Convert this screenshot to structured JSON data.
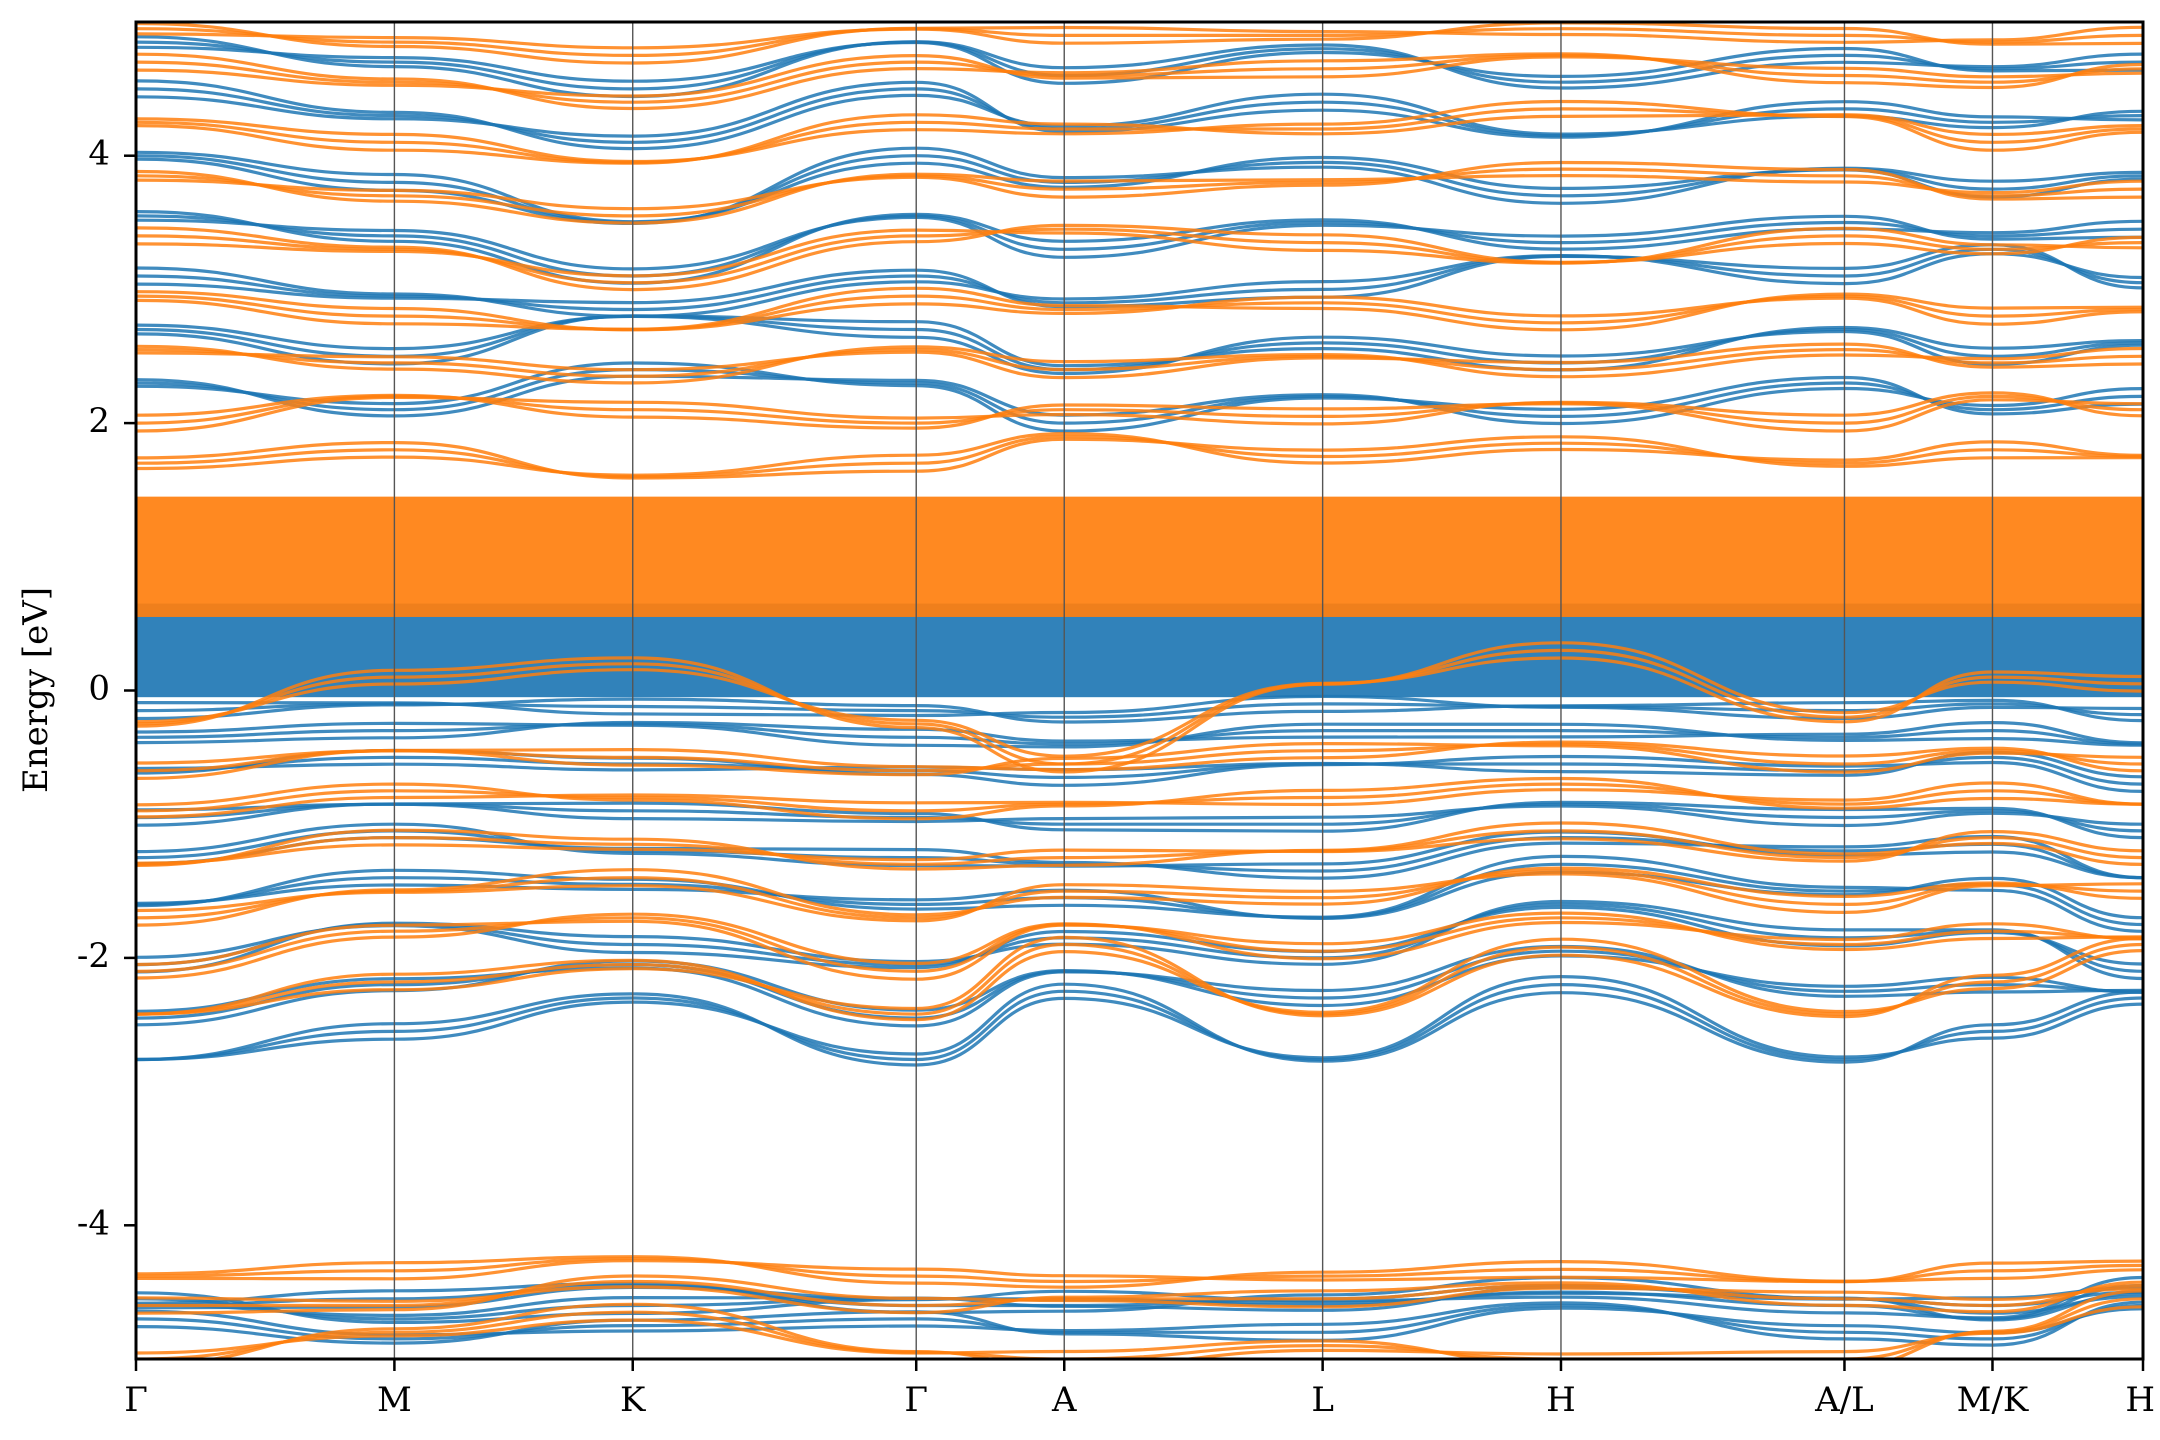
{
  "chart_data": {
    "type": "line",
    "title": "",
    "xlabel": "",
    "ylabel": "Energy [eV]",
    "ylim": [
      -5,
      5
    ],
    "y_ticks": [
      -4,
      -2,
      0,
      2,
      4
    ],
    "y_tick_labels": [
      "-4",
      "-2",
      "0",
      "2",
      "4"
    ],
    "x_range": [
      0,
      8.0
    ],
    "x_ticks": [
      {
        "label": "Γ",
        "x": 0.0
      },
      {
        "label": "M",
        "x": 1.03
      },
      {
        "label": "K",
        "x": 1.98
      },
      {
        "label": "Γ",
        "x": 3.11
      },
      {
        "label": "A",
        "x": 3.7
      },
      {
        "label": "L",
        "x": 4.73
      },
      {
        "label": "H",
        "x": 5.68
      },
      {
        "label": "A/L",
        "x": 6.81
      },
      {
        "label": "M/K",
        "x": 7.4
      },
      {
        "label": "H",
        "x": 8.0
      }
    ],
    "segment_breaks": [
      6.81,
      7.4
    ],
    "grid": false,
    "legend": "none",
    "series_colors": {
      "spin_up": "#1f77b4",
      "spin_down": "#ff7f0e"
    },
    "series": [
      {
        "color": "#1f77b4",
        "bands": [
          [
            -2.76,
            -2.55,
            -2.3,
            -2.76,
            -2.25,
            -2.76,
            -2.2,
            -2.76,
            -2.55,
            -2.3
          ],
          [
            -2.45,
            -2.2,
            -2.05,
            -2.45,
            -2.1,
            -2.3,
            -1.95,
            -2.25,
            -2.2,
            -2.25
          ],
          [
            -2.05,
            -1.75,
            -1.9,
            -2.05,
            -1.85,
            -2.0,
            -1.6,
            -1.85,
            -1.8,
            -2.1
          ],
          [
            -1.6,
            -1.4,
            -1.45,
            -1.6,
            -1.55,
            -1.7,
            -1.3,
            -1.5,
            -1.45,
            -1.75
          ],
          [
            -1.25,
            -1.05,
            -1.2,
            -1.25,
            -1.3,
            -1.35,
            -1.1,
            -1.2,
            -1.15,
            -1.4
          ],
          [
            -0.95,
            -0.85,
            -0.9,
            -0.95,
            -1.0,
            -1.0,
            -0.85,
            -0.95,
            -0.9,
            -1.05
          ],
          [
            -0.6,
            -0.5,
            -0.55,
            -0.6,
            -0.65,
            -0.55,
            -0.55,
            -0.6,
            -0.5,
            -0.7
          ],
          [
            -0.35,
            -0.3,
            -0.25,
            -0.35,
            -0.4,
            -0.3,
            -0.3,
            -0.35,
            -0.3,
            -0.4
          ],
          [
            -0.15,
            -0.1,
            -0.12,
            -0.15,
            -0.2,
            -0.1,
            -0.12,
            -0.15,
            -0.1,
            -0.18
          ],
          [
            2.3,
            2.1,
            2.4,
            2.3,
            2.0,
            2.2,
            2.05,
            2.3,
            2.1,
            2.2
          ],
          [
            2.7,
            2.5,
            2.8,
            2.7,
            2.4,
            2.6,
            2.45,
            2.7,
            2.5,
            2.6
          ],
          [
            3.1,
            2.95,
            2.85,
            3.1,
            2.9,
            3.0,
            3.25,
            3.1,
            3.3,
            3.05
          ],
          [
            3.55,
            3.4,
            3.1,
            3.55,
            3.3,
            3.5,
            3.35,
            3.5,
            3.4,
            3.45
          ],
          [
            4.0,
            3.8,
            3.5,
            4.0,
            3.8,
            3.95,
            3.7,
            3.9,
            3.75,
            3.85
          ],
          [
            4.5,
            4.3,
            4.1,
            4.5,
            4.2,
            4.4,
            4.15,
            4.35,
            4.25,
            4.3
          ],
          [
            4.85,
            4.7,
            4.5,
            4.85,
            4.6,
            4.8,
            4.55,
            4.75,
            4.65,
            4.7
          ],
          [
            -4.6,
            -4.55,
            -4.45,
            -4.6,
            -4.6,
            -4.55,
            -4.45,
            -4.55,
            -4.6,
            -4.5
          ],
          [
            -4.7,
            -4.85,
            -4.75,
            -4.7,
            -4.8,
            -4.8,
            -4.6,
            -4.8,
            -4.85,
            -4.6
          ],
          [
            -4.55,
            -4.7,
            -4.6,
            -4.55,
            -4.55,
            -4.6,
            -4.5,
            -4.6,
            -4.7,
            -4.45
          ]
        ]
      },
      {
        "color": "#ff7f0e",
        "bands": [
          [
            -2.42,
            -2.18,
            -2.05,
            -2.42,
            -1.9,
            -2.42,
            -1.92,
            -2.42,
            -2.18,
            -1.9
          ],
          [
            -2.1,
            -1.8,
            -1.7,
            -2.1,
            -1.75,
            -1.95,
            -1.7,
            -1.9,
            -1.8,
            -1.85
          ],
          [
            -1.7,
            -1.5,
            -1.4,
            -1.7,
            -1.5,
            -1.55,
            -1.35,
            -1.6,
            -1.45,
            -1.5
          ],
          [
            -1.3,
            -1.1,
            -1.15,
            -1.3,
            -1.25,
            -1.2,
            -1.05,
            -1.25,
            -1.1,
            -1.25
          ],
          [
            -0.9,
            -0.75,
            -0.8,
            -0.9,
            -0.85,
            -0.8,
            -0.7,
            -0.85,
            -0.75,
            -0.85
          ],
          [
            -0.6,
            -0.45,
            -0.5,
            -0.6,
            -0.55,
            -0.45,
            -0.4,
            -0.55,
            -0.45,
            -0.55
          ],
          [
            -0.25,
            0.1,
            0.2,
            -0.25,
            -0.55,
            0.05,
            0.3,
            -0.2,
            0.1,
            0.05
          ],
          [
            1.7,
            1.8,
            1.6,
            1.7,
            1.9,
            1.75,
            1.85,
            1.7,
            1.8,
            1.75
          ],
          [
            2.0,
            2.2,
            2.1,
            2.0,
            2.1,
            2.05,
            2.15,
            2.0,
            2.2,
            2.1
          ],
          [
            2.55,
            2.45,
            2.35,
            2.55,
            2.4,
            2.5,
            2.4,
            2.55,
            2.45,
            2.5
          ],
          [
            2.95,
            2.8,
            2.7,
            2.95,
            2.85,
            2.9,
            2.75,
            2.95,
            2.8,
            2.85
          ],
          [
            3.4,
            3.3,
            3.05,
            3.4,
            3.45,
            3.35,
            3.2,
            3.4,
            3.3,
            3.35
          ],
          [
            3.85,
            3.7,
            3.55,
            3.85,
            3.75,
            3.8,
            3.9,
            3.85,
            3.7,
            3.75
          ],
          [
            4.25,
            4.1,
            3.95,
            4.25,
            4.2,
            4.2,
            4.35,
            4.3,
            4.1,
            4.2
          ],
          [
            4.7,
            4.55,
            4.4,
            4.7,
            4.6,
            4.65,
            4.75,
            4.6,
            4.55,
            4.65
          ],
          [
            4.95,
            4.85,
            4.75,
            4.95,
            4.9,
            4.9,
            4.95,
            4.9,
            4.85,
            4.9
          ],
          [
            -4.38,
            -4.34,
            -4.25,
            -4.38,
            -4.42,
            -4.38,
            -4.33,
            -4.42,
            -4.34,
            -4.3
          ],
          [
            -4.6,
            -4.6,
            -4.42,
            -4.6,
            -4.55,
            -4.55,
            -4.45,
            -4.55,
            -4.6,
            -4.45
          ],
          [
            -5.0,
            -4.8,
            -4.65,
            -4.95,
            -5.0,
            -4.9,
            -5.0,
            -5.0,
            -4.8,
            -4.55
          ]
        ]
      }
    ],
    "dense_bands": [
      {
        "color": "#1f77b4",
        "ymin": -0.05,
        "ymax": 0.65
      },
      {
        "color": "#ff7f0e",
        "ymin": 0.55,
        "ymax": 1.45
      }
    ]
  }
}
